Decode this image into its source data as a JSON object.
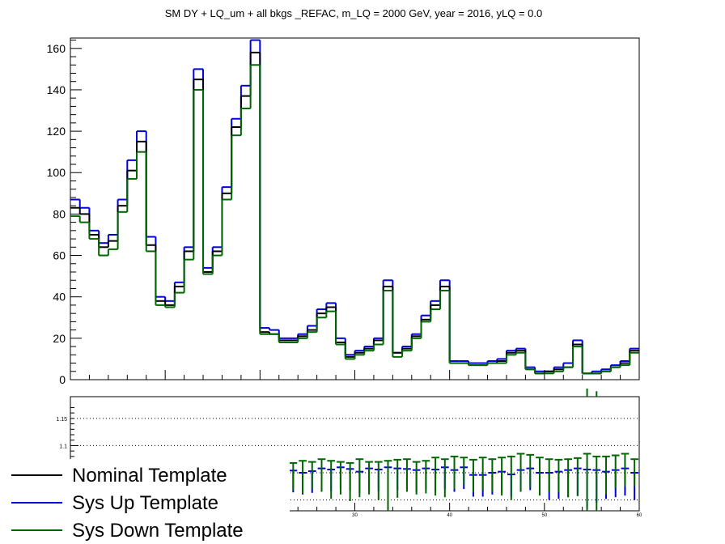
{
  "chart_data": [
    {
      "type": "line",
      "title": "SM DY + LQ_um + all bkgs  _REFAC, m_LQ = 2000 GeV, year = 2016, yLQ = 0.0",
      "xlabel": "",
      "ylabel": "",
      "xlim": [
        0,
        60
      ],
      "ylim": [
        0,
        165
      ],
      "yticks": [
        0,
        20,
        40,
        60,
        80,
        100,
        120,
        140,
        160
      ],
      "grid": false,
      "step": true,
      "series": [
        {
          "name": "Nominal Template",
          "color": "#000000",
          "values": [
            83,
            80,
            70,
            64,
            67,
            84,
            101,
            115,
            65,
            38,
            36,
            45,
            62,
            145,
            52,
            62,
            90,
            122,
            137,
            158,
            23,
            22,
            19,
            19,
            21,
            24,
            32,
            35,
            18,
            11,
            13,
            15,
            19,
            45,
            13,
            15,
            21,
            29,
            36,
            45,
            8,
            8,
            7,
            7,
            8,
            9,
            13,
            14,
            5,
            3,
            4,
            5,
            6,
            17,
            3,
            3,
            4,
            6,
            8,
            14
          ]
        },
        {
          "name": "Sys Up Template",
          "color": "#0000dd",
          "values": [
            87,
            83,
            72,
            66,
            70,
            87,
            106,
            120,
            69,
            40,
            38,
            47,
            64,
            150,
            54,
            64,
            93,
            126,
            142,
            164,
            25,
            24,
            20,
            20,
            22,
            26,
            34,
            37,
            20,
            12,
            14,
            16,
            20,
            48,
            13,
            16,
            22,
            31,
            38,
            48,
            9,
            9,
            8,
            8,
            9,
            10,
            14,
            15,
            6,
            4,
            4,
            6,
            8,
            19,
            3,
            4,
            5,
            7,
            9,
            15
          ]
        },
        {
          "name": "Sys Down Template",
          "color": "#006600",
          "values": [
            79,
            76,
            68,
            60,
            63,
            81,
            97,
            110,
            62,
            36,
            35,
            42,
            58,
            140,
            51,
            60,
            87,
            118,
            131,
            152,
            22,
            22,
            18,
            18,
            20,
            23,
            30,
            33,
            17,
            10,
            12,
            14,
            17,
            43,
            11,
            14,
            20,
            28,
            34,
            43,
            8,
            8,
            7,
            7,
            8,
            8,
            12,
            13,
            5,
            3,
            3,
            4,
            6,
            16,
            3,
            3,
            4,
            6,
            7,
            13
          ]
        }
      ]
    },
    {
      "type": "scatter",
      "title": "",
      "xlim": [
        0,
        60
      ],
      "ylim": [
        0.98,
        1.19
      ],
      "yticks": [
        1.05,
        1.1,
        1.15
      ],
      "xticks": [
        30,
        40,
        50,
        60
      ],
      "gridlines_y": [
        1.0,
        1.05,
        1.1,
        1.15
      ],
      "series": [
        {
          "name": "Sys Up Template",
          "color": "#0000dd",
          "values": [
            1.048,
            1.045,
            1.04,
            1.046,
            1.055,
            1.05,
            1.048,
            1.052,
            1.06,
            1.048,
            1.05,
            1.058,
            1.04,
            1.062,
            1.05,
            1.052,
            1.046,
            1.05,
            1.045,
            1.048,
            1.062,
            1.056,
            1.055,
            1.054,
            1.05,
            1.053,
            1.058,
            1.056,
            1.06,
            1.057,
            1.052,
            1.058,
            1.056,
            1.06,
            1.058,
            1.057,
            1.055,
            1.058,
            1.056,
            1.06,
            1.055,
            1.06,
            1.046,
            1.046,
            1.05,
            1.052,
            1.047,
            1.055,
            1.058,
            1.05,
            1.05,
            1.052,
            1.055,
            1.058,
            1.056,
            1.055,
            1.052,
            1.055,
            1.058,
            1.05
          ],
          "errors": [
            0.03,
            0.03,
            0.03,
            0.03,
            0.03,
            0.03,
            0.03,
            0.03,
            0.03,
            0.03,
            0.03,
            0.03,
            0.03,
            0.03,
            0.03,
            0.03,
            0.03,
            0.03,
            0.03,
            0.03,
            0.04,
            0.04,
            0.04,
            0.04,
            0.04,
            0.04,
            0.04,
            0.04,
            0.04,
            0.04,
            0.04,
            0.04,
            0.04,
            0.04,
            0.04,
            0.04,
            0.04,
            0.04,
            0.04,
            0.04,
            0.04,
            0.04,
            0.04,
            0.04,
            0.04,
            0.04,
            0.04,
            0.04,
            0.04,
            0.04,
            0.05,
            0.05,
            0.05,
            0.05,
            0.07,
            0.06,
            0.05,
            0.05,
            0.05,
            0.05
          ]
        },
        {
          "name": "Sys Down Template",
          "color": "#006600",
          "values": [
            1.045,
            1.052,
            1.05,
            1.052,
            1.06,
            1.068,
            1.06,
            1.055,
            1.052,
            1.07,
            1.05,
            1.058,
            1.058,
            1.062,
            1.055,
            1.052,
            1.05,
            1.048,
            1.055,
            1.05,
            1.072,
            1.065,
            1.07,
            1.068,
            1.072,
            1.07,
            1.075,
            1.072,
            1.07,
            1.068,
            1.075,
            1.07,
            1.07,
            1.072,
            1.074,
            1.075,
            1.07,
            1.072,
            1.078,
            1.075,
            1.08,
            1.078,
            1.074,
            1.078,
            1.075,
            1.078,
            1.08,
            1.085,
            1.083,
            1.078,
            1.075,
            1.074,
            1.075,
            1.077,
            1.085,
            1.08,
            1.08,
            1.082,
            1.085,
            1.075
          ],
          "errors": [
            0.04,
            0.05,
            0.05,
            0.05,
            0.06,
            0.05,
            0.06,
            0.05,
            0.05,
            0.06,
            0.05,
            0.05,
            0.06,
            0.06,
            0.05,
            0.06,
            0.05,
            0.05,
            0.05,
            0.06,
            0.06,
            0.06,
            0.06,
            0.05,
            0.06,
            0.05,
            0.06,
            0.07,
            0.06,
            0.07,
            0.07,
            0.06,
            0.07,
            0.1,
            0.07,
            0.06,
            0.06,
            0.06,
            0.07,
            0.07,
            0.06,
            0.05,
            0.06,
            0.06,
            0.06,
            0.07,
            0.08,
            0.07,
            0.06,
            0.07,
            0.06,
            0.06,
            0.07,
            0.07,
            0.12,
            0.12,
            0.07,
            0.06,
            0.06,
            0.05
          ]
        }
      ]
    }
  ],
  "legend": {
    "placement": "bottom-left",
    "entries": [
      {
        "label": "Nominal Template",
        "color": "#000000"
      },
      {
        "label": "Sys Up Template",
        "color": "#0000dd"
      },
      {
        "label": "Sys Down Template",
        "color": "#006600"
      }
    ]
  }
}
